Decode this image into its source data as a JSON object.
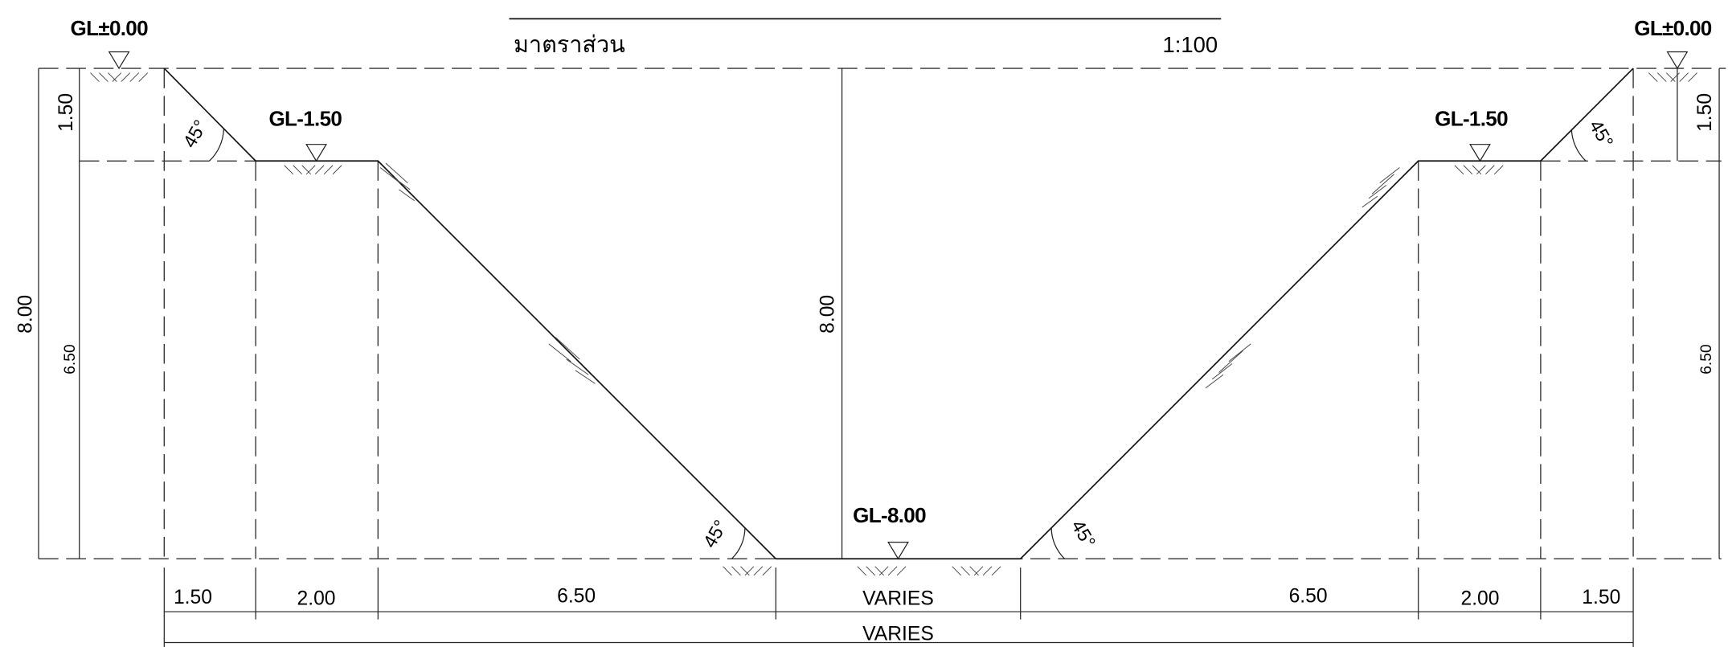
{
  "header": {
    "scale_label": "มาตราส่วน",
    "scale": "1:100"
  },
  "levels": [
    "GL±0.00",
    "GL-1.50",
    "GL-8.00",
    "GL-1.50",
    "GL±0.00"
  ],
  "angles": [
    "45°",
    "45°",
    "45°",
    "45°"
  ],
  "vertical_dimensions": [
    "1.50",
    "8.00",
    "6.50",
    "8.00",
    "1.50",
    "6.50"
  ],
  "horizontal_dimensions": [
    "1.50",
    "2.00",
    "6.50",
    "VARIES",
    "6.50",
    "2.00",
    "1.50"
  ],
  "overall_width": "VARIES"
}
